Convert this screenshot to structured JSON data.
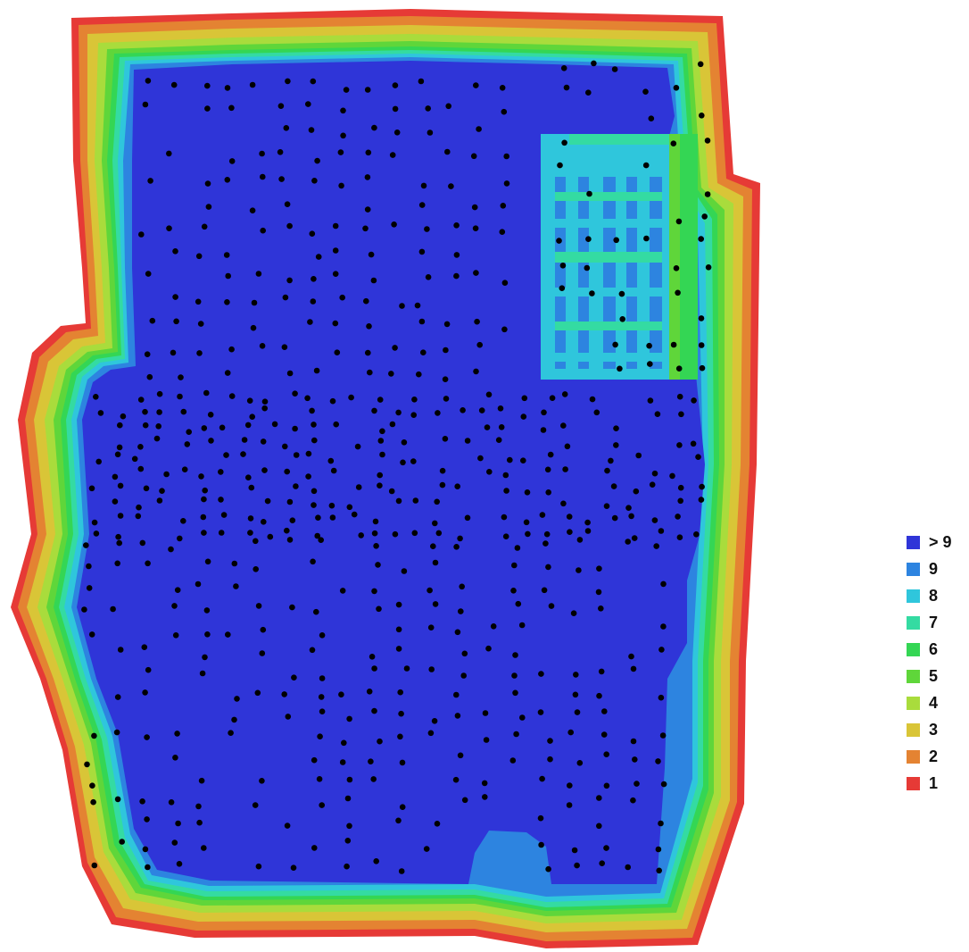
{
  "legend": {
    "items": [
      {
        "label": "> 9",
        "color": "#2f35d8"
      },
      {
        "label": "9",
        "color": "#2d84e0"
      },
      {
        "label": "8",
        "color": "#2fc6dc"
      },
      {
        "label": "7",
        "color": "#34dba2"
      },
      {
        "label": "6",
        "color": "#34d654"
      },
      {
        "label": "5",
        "color": "#5fd63a"
      },
      {
        "label": "4",
        "color": "#a9dc3c"
      },
      {
        "label": "3",
        "color": "#d9c537"
      },
      {
        "label": "2",
        "color": "#e48332"
      },
      {
        "label": "1",
        "color": "#e63a36"
      }
    ]
  },
  "map": {
    "camera_marker_color": "#000000",
    "background_color": "#ffffff"
  }
}
